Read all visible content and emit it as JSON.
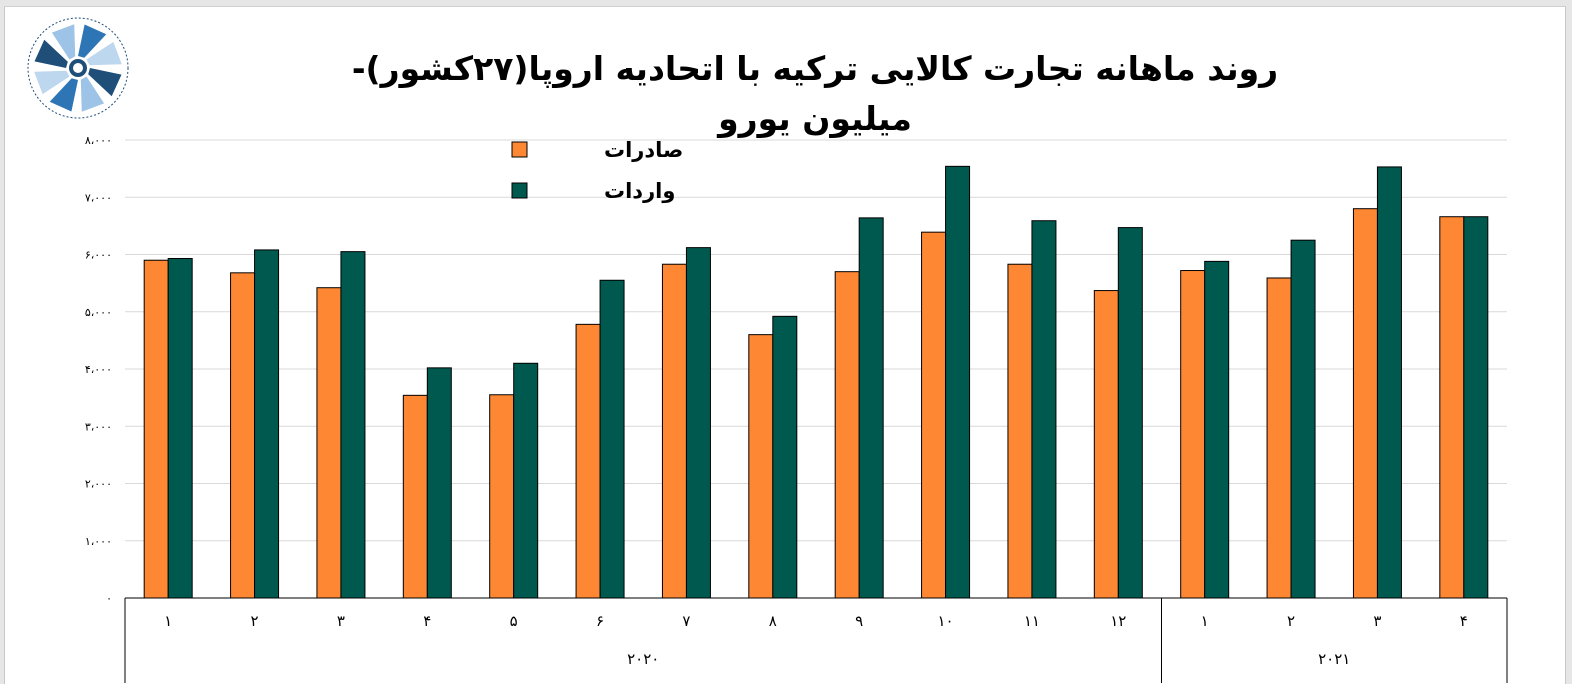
{
  "title": "روند ماهانه تجارت کالایی ترکیه با اتحادیه اروپا(۲۷کشور)- میلیون یورو",
  "logo": {
    "icon": "chamber-of-commerce-logo-icon",
    "text": "TEHRAN CHAMBER OF COMMERCE INDUSTRIES MINES AND AGRICULTURE"
  },
  "colors": {
    "exports": "#fe8734",
    "imports": "#00594f",
    "grid": "#d9d9d9",
    "axis": "#000000"
  },
  "chart_data": {
    "type": "bar",
    "title": "روند ماهانه تجارت کالایی ترکیه با اتحادیه اروپا(۲۷کشور)- میلیون یورو",
    "xlabel": "",
    "ylabel": "",
    "ylim": [
      0,
      8000
    ],
    "yticks": [
      0,
      1000,
      2000,
      3000,
      4000,
      5000,
      6000,
      7000,
      8000
    ],
    "ytick_labels": [
      "۰",
      "۱،۰۰۰",
      "۲،۰۰۰",
      "۳،۰۰۰",
      "۴،۰۰۰",
      "۵،۰۰۰",
      "۶،۰۰۰",
      "۷،۰۰۰",
      "۸،۰۰۰"
    ],
    "grid": true,
    "legend_position": "top-left",
    "categories": [
      "۱",
      "۲",
      "۳",
      "۴",
      "۵",
      "۶",
      "۷",
      "۸",
      "۹",
      "۱۰",
      "۱۱",
      "۱۲",
      "۱",
      "۲",
      "۳",
      "۴"
    ],
    "groups": [
      {
        "label": "۲۰۲۰",
        "count": 12
      },
      {
        "label": "۲۰۲۱",
        "count": 4
      }
    ],
    "series": [
      {
        "name": "صادرات",
        "values": [
          5900,
          5680,
          5420,
          3540,
          3550,
          4780,
          5830,
          4600,
          5700,
          6390,
          5830,
          5370,
          5720,
          5590,
          6800,
          6660
        ]
      },
      {
        "name": "واردات",
        "values": [
          5930,
          6080,
          6050,
          4020,
          4100,
          5550,
          6120,
          4920,
          6640,
          7540,
          6590,
          6470,
          5880,
          6250,
          7530,
          6660
        ]
      }
    ]
  }
}
